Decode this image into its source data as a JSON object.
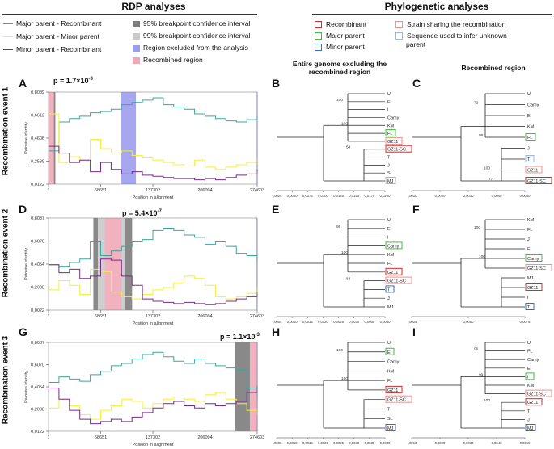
{
  "headers": {
    "rdp": "RDP analyses",
    "phylo": "Phylogenetic analyses"
  },
  "rdp_legend": {
    "major_recombinant": "Major parent - Recombinant",
    "major_minor": "Major parent - Minor parent",
    "minor_recombinant": "Minor parent - Recombinant",
    "ci95": "95% breakpoint confidence interval",
    "ci99": "99% breakpoint confidence interval",
    "excluded": "Region excluded from the analysis",
    "recombined": "Recombined region"
  },
  "phylo_legend": {
    "recombinant": "Recombinant",
    "major_parent": "Major parent",
    "minor_parent": "Minor parent",
    "strain_sharing": "Strain sharing the recombination",
    "sequence_used_1": "Sequence used to infer unknown",
    "sequence_used_2": "parent"
  },
  "column_titles": {
    "genome_1": "Entire genome excluding the",
    "genome_2": "recombined region",
    "recombined": "Recombined region"
  },
  "colors": {
    "major_recombinant": "#3aa6a0",
    "major_minor": "#f4ef3a",
    "minor_recombinant": "#7a2a8c",
    "ci95": "#7c7c7c",
    "ci99": "#c9c9c9",
    "excluded": "#9c9cf0",
    "recombined": "#f0a8b8",
    "box_recombinant": "#d42a2a",
    "box_major": "#3dbd3d",
    "box_minor": "#2f6fc0",
    "box_strain": "#f09090",
    "box_sequence": "#98b6e6"
  },
  "events": [
    {
      "row_label": "Recombination event 1",
      "rdp_panel": "A",
      "p_value_base": "p = 1.7×10",
      "p_value_exp": "-3",
      "yticks": [
        "0,8089",
        "0,6612",
        "0,4606",
        "0,2539",
        "0,0122"
      ],
      "xticks": [
        "1",
        "68651",
        "137302",
        "206004",
        "274603"
      ],
      "xlabel": "Position in alignment",
      "ylabel": "Pairwise identity",
      "tree1_panel": "B",
      "tree2_panel": "C"
    },
    {
      "row_label": "Recombination event 2",
      "rdp_panel": "D",
      "p_value_base": "p = 5.4×10",
      "p_value_exp": "-7",
      "yticks": [
        "0,8087",
        "0,6070",
        "0,4054",
        "0,2038",
        "0,0022"
      ],
      "xticks": [
        "1",
        "68651",
        "137302",
        "206004",
        "274603"
      ],
      "xlabel": "Position in alignment",
      "ylabel": "Pairwise identity",
      "tree1_panel": "E",
      "tree2_panel": "F"
    },
    {
      "row_label": "Recombination event 3",
      "rdp_panel": "G",
      "p_value_base": "p = 1.1×10",
      "p_value_exp": "-3",
      "yticks": [
        "0,8087",
        "0,6070",
        "0,4054",
        "0,2038",
        "0,0122"
      ],
      "xticks": [
        "1",
        "68651",
        "137302",
        "206004",
        "274603"
      ],
      "xlabel": "Position in alignment",
      "ylabel": "Pairwise identity",
      "tree1_panel": "H",
      "tree2_panel": "I"
    }
  ],
  "trees": {
    "B": {
      "taxa": [
        "U",
        "E",
        "I",
        "Camy",
        "KM",
        "FL",
        "GZ11",
        "GZ11-SC",
        "T",
        "J",
        "SL",
        "MJ"
      ],
      "support": [
        "100",
        "100",
        "54"
      ],
      "axis": [
        "0,0025",
        "0,0050",
        "0,0075",
        "0,0100",
        "0,0125",
        "0,0150",
        "0,0175",
        "0,0200"
      ]
    },
    "C": {
      "taxa": [
        "U",
        "Camy",
        "E",
        "KM",
        "FL",
        "J",
        "T",
        "GZ11",
        "GZ11-SC"
      ],
      "support": [
        "72",
        "98",
        "100",
        "77"
      ],
      "axis": [
        "0,0010",
        "0,0020",
        "0,0030",
        "0,0040",
        "0,0050"
      ]
    },
    "E": {
      "taxa": [
        "U",
        "E",
        "I",
        "Camy",
        "KM",
        "FL",
        "GZ11",
        "GZ11-SC",
        "T",
        "J",
        "MJ"
      ],
      "support": [
        "99",
        "100",
        "83"
      ],
      "axis": [
        "0,0005",
        "0,0010",
        "0,0015",
        "0,0020",
        "0,0025",
        "0,0030",
        "0,0035",
        "0,0040"
      ]
    },
    "F": {
      "taxa": [
        "KM",
        "FL",
        "J",
        "E",
        "Camy",
        "GZ11-SC",
        "MJ",
        "GZ11",
        "I",
        "T"
      ],
      "support": [
        "100",
        "100"
      ],
      "axis": [
        "0,0025",
        "0,0050",
        "0,0075"
      ]
    },
    "H": {
      "taxa": [
        "U",
        "E",
        "Camy",
        "KM",
        "FL",
        "GZ11",
        "GZ11-SC",
        "T",
        "SL",
        "MJ"
      ],
      "support": [
        "100",
        "100"
      ],
      "axis": [
        "0,0005",
        "0,0010",
        "0,0015",
        "0,0020",
        "0,0025",
        "0,0030",
        "0,0035",
        "0,0040"
      ]
    },
    "I": {
      "taxa": [
        "U",
        "FL",
        "Camy",
        "E",
        "I",
        "KM",
        "GZ11-SC",
        "GZ11",
        "T",
        "J",
        "MJ"
      ],
      "support": [
        "96",
        "99",
        "100"
      ],
      "axis": [
        "0,0010",
        "0,0020",
        "0,0030",
        "0,0040",
        "0,0050"
      ]
    }
  },
  "chart_data": [
    {
      "type": "line",
      "panel": "A",
      "title": "",
      "xlabel": "Position in alignment",
      "ylabel": "Pairwise identity",
      "xlim": [
        1,
        274603
      ],
      "ylim": [
        0.0122,
        0.8089
      ],
      "x": [
        1,
        13730,
        27460,
        41190,
        54920,
        68651,
        82381,
        96111,
        109841,
        123571,
        137302,
        151032,
        164762,
        178492,
        192222,
        206004,
        219734,
        233464,
        247194,
        260924,
        274603
      ],
      "series": [
        {
          "name": "Major parent - Recombinant",
          "values": [
            0.3,
            0.55,
            0.58,
            0.6,
            0.63,
            0.64,
            0.66,
            0.7,
            0.72,
            0.74,
            0.76,
            0.7,
            0.68,
            0.66,
            0.62,
            0.6,
            0.58,
            0.56,
            0.55,
            0.57,
            0.6
          ]
        },
        {
          "name": "Major parent - Minor parent",
          "values": [
            0.62,
            0.2,
            0.25,
            0.22,
            0.4,
            0.32,
            0.28,
            0.3,
            0.26,
            0.24,
            0.22,
            0.2,
            0.18,
            0.17,
            0.22,
            0.16,
            0.14,
            0.16,
            0.18,
            0.2,
            0.23
          ]
        },
        {
          "name": "Minor parent - Recombinant",
          "values": [
            0.34,
            0.28,
            0.2,
            0.22,
            0.12,
            0.2,
            0.14,
            0.1,
            0.12,
            0.09,
            0.08,
            0.07,
            0.06,
            0.06,
            0.05,
            0.06,
            0.05,
            0.07,
            0.09,
            0.1,
            0.14
          ]
        }
      ],
      "regions": [
        {
          "type": "recombined",
          "start": 1,
          "end": 7000
        },
        {
          "type": "ci95",
          "start": 7000,
          "end": 9000
        },
        {
          "type": "excluded",
          "start": 95000,
          "end": 115000
        },
        {
          "type": "excluded",
          "start": 274000,
          "end": 274603
        }
      ]
    },
    {
      "type": "line",
      "panel": "D",
      "title": "",
      "xlabel": "Position in alignment",
      "ylabel": "Pairwise identity",
      "xlim": [
        1,
        274603
      ],
      "ylim": [
        0.0022,
        0.8087
      ],
      "x": [
        1,
        13730,
        27460,
        41190,
        54920,
        68651,
        82381,
        96111,
        109841,
        123571,
        137302,
        151032,
        164762,
        178492,
        192222,
        206004,
        219734,
        233464,
        247194,
        260924,
        274603
      ],
      "series": [
        {
          "name": "Major parent - Recombinant",
          "values": [
            0.4,
            0.38,
            0.42,
            0.45,
            0.6,
            0.48,
            0.52,
            0.56,
            0.6,
            0.62,
            0.7,
            0.72,
            0.7,
            0.66,
            0.64,
            0.58,
            0.6,
            0.56,
            0.5,
            0.48,
            0.42
          ]
        },
        {
          "name": "Major parent - Minor parent",
          "values": [
            0.18,
            0.26,
            0.22,
            0.14,
            0.36,
            0.34,
            0.16,
            0.12,
            0.1,
            0.14,
            0.18,
            0.2,
            0.24,
            0.3,
            0.28,
            0.22,
            0.12,
            0.1,
            0.12,
            0.15,
            0.2
          ]
        },
        {
          "name": "Minor parent - Recombinant",
          "values": [
            0.4,
            0.33,
            0.36,
            0.28,
            0.3,
            0.45,
            0.44,
            0.3,
            0.22,
            0.1,
            0.08,
            0.07,
            0.06,
            0.07,
            0.06,
            0.05,
            0.06,
            0.08,
            0.1,
            0.12,
            0.16
          ]
        }
      ],
      "regions": [
        {
          "type": "ci95",
          "start": 59000,
          "end": 65000
        },
        {
          "type": "ci99",
          "start": 65000,
          "end": 74000
        },
        {
          "type": "recombined",
          "start": 74000,
          "end": 95000
        },
        {
          "type": "ci99",
          "start": 95000,
          "end": 100000
        },
        {
          "type": "ci95",
          "start": 100000,
          "end": 110000
        },
        {
          "type": "excluded",
          "start": 273800,
          "end": 274603
        }
      ]
    },
    {
      "type": "line",
      "panel": "G",
      "title": "",
      "xlabel": "Position in alignment",
      "ylabel": "Pairwise identity",
      "xlim": [
        1,
        274603
      ],
      "ylim": [
        0.0122,
        0.8087
      ],
      "x": [
        1,
        13730,
        27460,
        41190,
        54920,
        68651,
        82381,
        96111,
        109841,
        123571,
        137302,
        151032,
        164762,
        178492,
        192222,
        206004,
        219734,
        233464,
        247194,
        260924,
        274603
      ],
      "series": [
        {
          "name": "Major parent - Recombinant",
          "values": [
            0.45,
            0.5,
            0.48,
            0.46,
            0.52,
            0.55,
            0.6,
            0.62,
            0.66,
            0.7,
            0.72,
            0.68,
            0.64,
            0.62,
            0.66,
            0.62,
            0.6,
            0.58,
            0.56,
            0.4,
            0.3
          ]
        },
        {
          "name": "Major parent - Minor parent",
          "values": [
            0.22,
            0.3,
            0.24,
            0.16,
            0.12,
            0.2,
            0.24,
            0.3,
            0.28,
            0.22,
            0.26,
            0.3,
            0.32,
            0.3,
            0.28,
            0.34,
            0.36,
            0.3,
            0.26,
            0.2,
            0.16
          ]
        },
        {
          "name": "Minor parent - Recombinant",
          "values": [
            0.4,
            0.3,
            0.2,
            0.12,
            0.08,
            0.1,
            0.12,
            0.1,
            0.14,
            0.18,
            0.22,
            0.26,
            0.28,
            0.24,
            0.22,
            0.26,
            0.24,
            0.26,
            0.28,
            0.36,
            0.42
          ]
        }
      ],
      "regions": [
        {
          "type": "ci95",
          "start": 245000,
          "end": 265000
        },
        {
          "type": "recombined",
          "start": 265000,
          "end": 274000
        },
        {
          "type": "excluded",
          "start": 274000,
          "end": 274603
        }
      ]
    }
  ]
}
